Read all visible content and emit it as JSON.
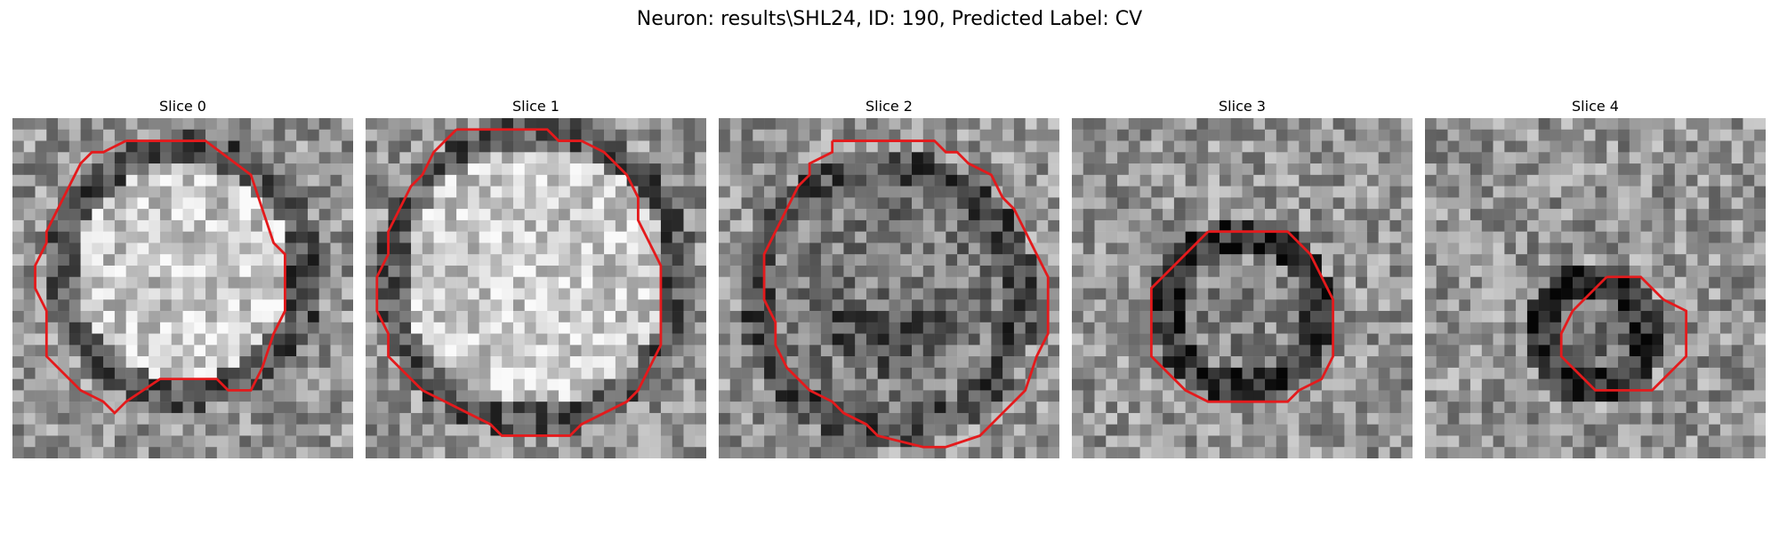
{
  "figure": {
    "title": "Neuron: results\\SHL24, ID: 190, Predicted Label: CV"
  },
  "panels": [
    {
      "title": "Slice 0"
    },
    {
      "title": "Slice 1"
    },
    {
      "title": "Slice 2"
    },
    {
      "title": "Slice 3"
    },
    {
      "title": "Slice 4"
    }
  ],
  "colors": {
    "contour": "#e41a1c",
    "background": "#ffffff"
  }
}
